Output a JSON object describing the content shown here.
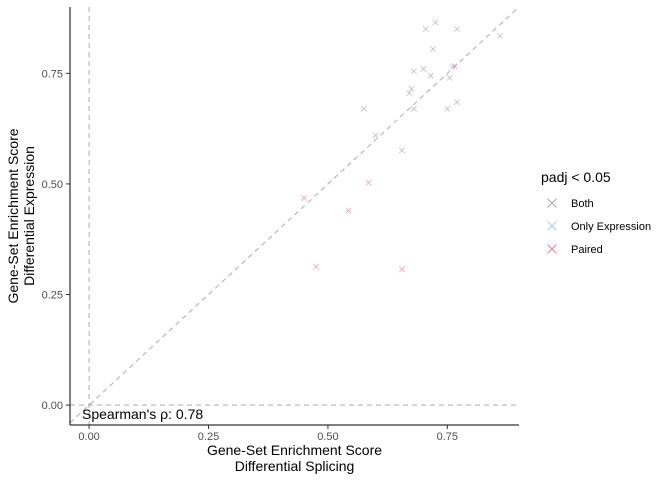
{
  "chart_data": {
    "type": "scatter",
    "xlabel": [
      "Gene-Set Enrichment Score",
      "Differential Splicing"
    ],
    "ylabel": [
      "Gene-Set Enrichment Score",
      "Differential Expression"
    ],
    "xlim": [
      -0.04,
      0.9
    ],
    "ylim": [
      -0.045,
      0.9
    ],
    "x_ticks": [
      0,
      0.25,
      0.5,
      0.75
    ],
    "x_tick_labels": [
      "0.00",
      "0.25",
      "0.50",
      "0.75"
    ],
    "y_ticks": [
      0,
      0.25,
      0.5,
      0.75
    ],
    "y_tick_labels": [
      "0.00",
      "0.25",
      "0.50",
      "0.75"
    ],
    "grid": false,
    "reference_lines": [
      "x = 0",
      "y = 0",
      "y = x"
    ],
    "annotation": "Spearman's ρ: 0.78",
    "legend": {
      "title": "padj < 0.05",
      "placement": "right",
      "entries": [
        "Both",
        "Only Expression",
        "Paired"
      ]
    },
    "series": [
      {
        "name": "Both",
        "color": "#a0a0a0",
        "points": [
          [
            0.655,
            0.576
          ],
          [
            0.675,
            0.715
          ],
          [
            0.67,
            0.705
          ],
          [
            0.68,
            0.67
          ],
          [
            0.7,
            0.76
          ],
          [
            0.715,
            0.745
          ],
          [
            0.705,
            0.85
          ],
          [
            0.72,
            0.805
          ],
          [
            0.77,
            0.85
          ],
          [
            0.86,
            0.835
          ],
          [
            0.75,
            0.67
          ],
          [
            0.77,
            0.685
          ],
          [
            0.755,
            0.74
          ],
          [
            0.575,
            0.67
          ],
          [
            0.6,
            0.61
          ],
          [
            0.68,
            0.755
          ],
          [
            0.725,
            0.865
          ]
        ]
      },
      {
        "name": "Only Expression",
        "color": "#9ecae1",
        "points": [
          [
            0.76,
            0.765
          ]
        ]
      },
      {
        "name": "Paired",
        "color": "#e07a8e",
        "points": [
          [
            0.45,
            0.468
          ],
          [
            0.475,
            0.313
          ],
          [
            0.543,
            0.44
          ],
          [
            0.585,
            0.503
          ],
          [
            0.655,
            0.307
          ],
          [
            0.765,
            0.766
          ]
        ]
      }
    ]
  }
}
